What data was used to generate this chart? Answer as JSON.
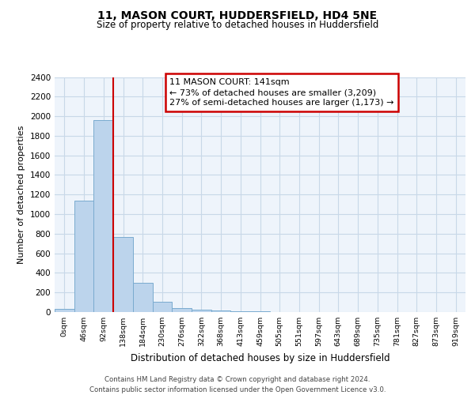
{
  "title1": "11, MASON COURT, HUDDERSFIELD, HD4 5NE",
  "title2": "Size of property relative to detached houses in Huddersfield",
  "xlabel": "Distribution of detached houses by size in Huddersfield",
  "ylabel": "Number of detached properties",
  "bin_labels": [
    "0sqm",
    "46sqm",
    "92sqm",
    "138sqm",
    "184sqm",
    "230sqm",
    "276sqm",
    "322sqm",
    "368sqm",
    "413sqm",
    "459sqm",
    "505sqm",
    "551sqm",
    "597sqm",
    "643sqm",
    "689sqm",
    "735sqm",
    "781sqm",
    "827sqm",
    "873sqm",
    "919sqm"
  ],
  "bar_values": [
    35,
    1140,
    1960,
    770,
    300,
    105,
    40,
    25,
    15,
    8,
    5,
    4,
    0,
    0,
    0,
    0,
    0,
    0,
    0,
    0,
    0
  ],
  "bar_color": "#bcd4ec",
  "bar_edgecolor": "#7aabcf",
  "vline_x": 2.5,
  "property_line_label": "11 MASON COURT: 141sqm",
  "annotation_line1": "← 73% of detached houses are smaller (3,209)",
  "annotation_line2": "27% of semi-detached houses are larger (1,173) →",
  "annotation_box_color": "#ffffff",
  "annotation_box_edgecolor": "#cc0000",
  "vline_color": "#cc0000",
  "ylim": [
    0,
    2400
  ],
  "yticks": [
    0,
    200,
    400,
    600,
    800,
    1000,
    1200,
    1400,
    1600,
    1800,
    2000,
    2200,
    2400
  ],
  "grid_color": "#c8d8e8",
  "footer_line1": "Contains HM Land Registry data © Crown copyright and database right 2024.",
  "footer_line2": "Contains public sector information licensed under the Open Government Licence v3.0.",
  "bg_color": "#eef4fb"
}
